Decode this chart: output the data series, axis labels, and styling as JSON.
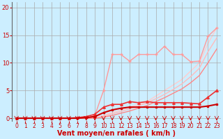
{
  "background_color": "#cceeff",
  "grid_color": "#aaaaaa",
  "xlabel": "Vent moyen/en rafales ( km/h )",
  "xlabel_color": "#cc0000",
  "xlabel_fontsize": 7,
  "tick_color": "#cc0000",
  "tick_fontsize": 5.5,
  "ylim": [
    -0.5,
    21
  ],
  "xlim": [
    -0.5,
    23.5
  ],
  "yticks": [
    0,
    5,
    10,
    15,
    20
  ],
  "xticks": [
    0,
    1,
    2,
    3,
    4,
    5,
    6,
    7,
    8,
    9,
    10,
    11,
    12,
    13,
    14,
    15,
    16,
    17,
    18,
    19,
    20,
    21,
    22,
    23
  ],
  "arrow_color": "#cc0000",
  "series": [
    {
      "x": [
        0,
        1,
        2,
        3,
        4,
        5,
        6,
        7,
        8,
        9,
        10,
        11,
        12,
        13,
        14,
        15,
        16,
        17,
        18,
        19,
        20,
        21,
        22,
        23
      ],
      "y": [
        0,
        0,
        0,
        0,
        0,
        0,
        0,
        0,
        0,
        0,
        0.5,
        1.0,
        1.5,
        2.0,
        2.5,
        3.0,
        4.0,
        5.0,
        6.0,
        7.0,
        8.5,
        10.0,
        13.5,
        16.3
      ],
      "color": "#ffcccc",
      "linewidth": 1.0,
      "marker": null,
      "markersize": 0,
      "zorder": 1
    },
    {
      "x": [
        0,
        1,
        2,
        3,
        4,
        5,
        6,
        7,
        8,
        9,
        10,
        11,
        12,
        13,
        14,
        15,
        16,
        17,
        18,
        19,
        20,
        21,
        22,
        23
      ],
      "y": [
        0,
        0,
        0,
        0,
        0,
        0,
        0,
        0,
        0,
        0,
        0.3,
        0.8,
        1.2,
        1.7,
        2.2,
        2.8,
        3.5,
        4.3,
        5.2,
        6.2,
        7.5,
        9.0,
        12.0,
        14.5
      ],
      "color": "#ffbbbb",
      "linewidth": 1.0,
      "marker": null,
      "markersize": 0,
      "zorder": 2
    },
    {
      "x": [
        0,
        5,
        6,
        7,
        8,
        9,
        10,
        11,
        12,
        13,
        14,
        15,
        16,
        17,
        18,
        19,
        20,
        21,
        22,
        23
      ],
      "y": [
        0,
        0,
        0,
        0,
        0,
        0.5,
        5.0,
        11.5,
        11.5,
        10.3,
        11.5,
        11.5,
        11.5,
        13.0,
        11.5,
        11.5,
        10.2,
        10.3,
        14.8,
        16.3
      ],
      "color": "#ff9999",
      "linewidth": 1.0,
      "marker": "+",
      "markersize": 3,
      "zorder": 3
    },
    {
      "x": [
        0,
        1,
        2,
        3,
        4,
        5,
        6,
        7,
        8,
        9,
        10,
        11,
        12,
        13,
        14,
        15,
        16,
        17,
        18,
        19,
        20,
        21,
        22,
        23
      ],
      "y": [
        0,
        0,
        0,
        0,
        0,
        0,
        0,
        0,
        0,
        0,
        0.2,
        0.5,
        0.9,
        1.3,
        1.8,
        2.3,
        3.0,
        3.7,
        4.5,
        5.3,
        6.4,
        7.7,
        10.0,
        12.5
      ],
      "color": "#ff8888",
      "linewidth": 1.0,
      "marker": null,
      "markersize": 0,
      "zorder": 2
    },
    {
      "x": [
        0,
        1,
        2,
        3,
        4,
        5,
        6,
        7,
        8,
        9,
        10,
        11,
        12,
        13,
        14,
        15,
        16,
        17,
        18,
        19,
        20,
        21,
        22,
        23
      ],
      "y": [
        0,
        0,
        0,
        0,
        0,
        0,
        0,
        0.1,
        0.3,
        0.7,
        2.0,
        2.5,
        2.5,
        3.0,
        2.8,
        3.0,
        2.8,
        2.8,
        2.8,
        2.8,
        2.7,
        2.6,
        3.8,
        5.0
      ],
      "color": "#ee3333",
      "linewidth": 1.2,
      "marker": "^",
      "markersize": 2.5,
      "zorder": 4
    },
    {
      "x": [
        0,
        1,
        2,
        3,
        4,
        5,
        6,
        7,
        8,
        9,
        10,
        11,
        12,
        13,
        14,
        15,
        16,
        17,
        18,
        19,
        20,
        21,
        22,
        23
      ],
      "y": [
        0,
        0,
        0,
        0,
        0,
        0,
        0,
        0,
        0.1,
        0.3,
        1.0,
        1.5,
        1.8,
        2.0,
        2.0,
        2.0,
        2.0,
        2.0,
        2.0,
        2.0,
        2.0,
        2.0,
        2.2,
        2.5
      ],
      "color": "#cc0000",
      "linewidth": 1.5,
      "marker": "s",
      "markersize": 2.0,
      "zorder": 6
    }
  ]
}
